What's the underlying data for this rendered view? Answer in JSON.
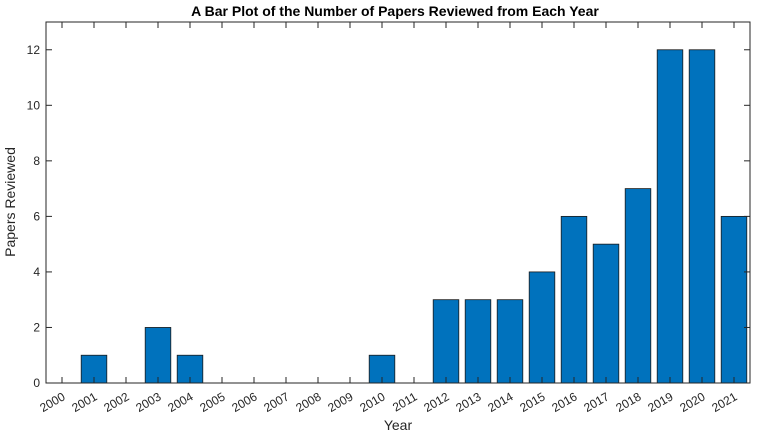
{
  "chart_data": {
    "type": "bar",
    "title": "A Bar Plot of the Number of Papers Reviewed from Each Year",
    "xlabel": "Year",
    "ylabel": "Papers Reviewed",
    "categories": [
      "2000",
      "2001",
      "2002",
      "2003",
      "2004",
      "2005",
      "2006",
      "2007",
      "2008",
      "2009",
      "2010",
      "2011",
      "2012",
      "2013",
      "2014",
      "2015",
      "2016",
      "2017",
      "2018",
      "2019",
      "2020",
      "2021"
    ],
    "values": [
      0,
      1,
      0,
      2,
      1,
      0,
      0,
      0,
      0,
      0,
      1,
      0,
      3,
      3,
      3,
      4,
      6,
      5,
      7,
      12,
      12,
      6
    ],
    "ylim": [
      0,
      13
    ],
    "yticks": [
      0,
      2,
      4,
      6,
      8,
      10,
      12
    ],
    "bar_color": "#0072bd",
    "grid": false,
    "legend": null
  }
}
